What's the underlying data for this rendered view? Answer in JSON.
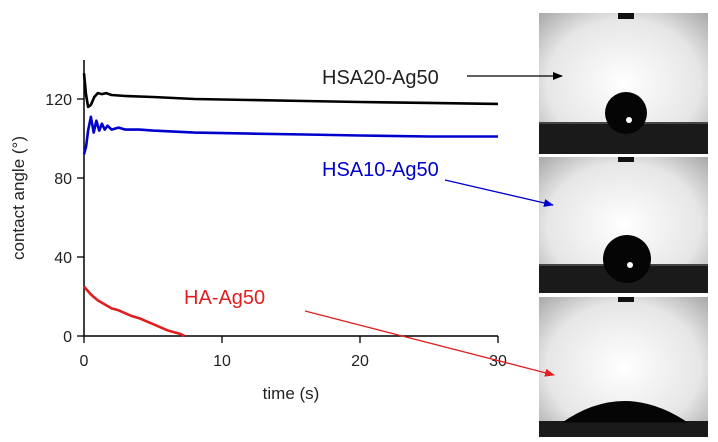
{
  "chart_data": {
    "type": "line",
    "xlabel": "time (s)",
    "ylabel": "contact angle (°)",
    "xlim": [
      0,
      30
    ],
    "ylim": [
      0,
      140
    ],
    "xticks": [
      0,
      10,
      20,
      30
    ],
    "yticks": [
      0,
      40,
      80,
      120
    ],
    "grid": false,
    "legend": "inline labels with arrows to droplet photographs",
    "series": [
      {
        "name": "HSA20-Ag50",
        "color": "#000000",
        "x": [
          0,
          0.15,
          0.3,
          0.5,
          0.75,
          1.0,
          1.3,
          1.6,
          2,
          3,
          5,
          8,
          12,
          16,
          20,
          25,
          30
        ],
        "y": [
          133,
          122,
          116,
          117,
          121,
          123,
          122.5,
          123,
          122,
          121.5,
          121,
          120,
          119.5,
          119,
          118.5,
          118,
          117.5
        ]
      },
      {
        "name": "HSA10-Ag50",
        "color": "#0000cc",
        "x": [
          0,
          0.15,
          0.3,
          0.5,
          0.7,
          0.9,
          1.1,
          1.3,
          1.5,
          1.7,
          2,
          2.5,
          3,
          4,
          5,
          8,
          12,
          16,
          20,
          25,
          30
        ],
        "y": [
          92,
          96,
          104,
          111,
          103,
          109,
          104,
          107.5,
          104.5,
          106.5,
          104.5,
          105.5,
          104.5,
          104.5,
          104,
          103,
          102.5,
          102,
          101.5,
          101,
          101
        ]
      },
      {
        "name": "HA-Ag50",
        "color": "#e02020",
        "x": [
          0,
          0.5,
          1,
          1.5,
          2,
          2.5,
          3,
          3.5,
          4,
          4.5,
          5,
          5.5,
          6,
          6.5,
          7,
          7.3
        ],
        "y": [
          25,
          21,
          18,
          16,
          14,
          13,
          11.5,
          10,
          9,
          7.5,
          6,
          4.5,
          3,
          2,
          1,
          0
        ]
      }
    ],
    "photos": [
      {
        "label": "HSA20-Ag50",
        "droplet": "sphere"
      },
      {
        "label": "HSA10-Ag50",
        "droplet": "sphere"
      },
      {
        "label": "HA-Ag50",
        "droplet": "spread"
      }
    ]
  }
}
